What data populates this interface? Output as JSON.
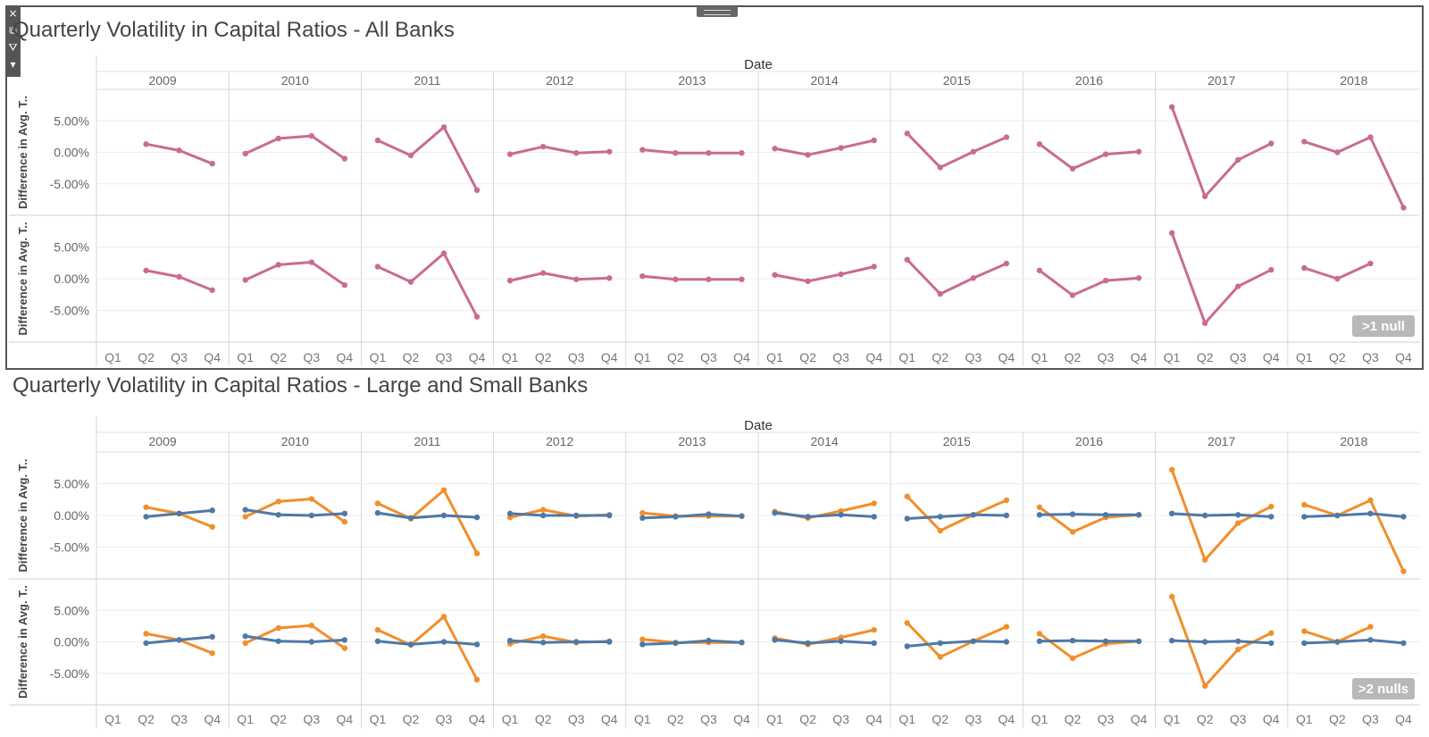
{
  "toolbar": {
    "close_icon": "×",
    "popout_icon": "⧉",
    "filter_icon": "⛛",
    "menu_icon": "▾"
  },
  "colors": {
    "all_banks": "#c96b94",
    "large_banks": "#4e79a7",
    "small_banks": "#f28e2b"
  },
  "chart_data": [
    {
      "type": "line",
      "title": "Quarterly Volatility in Capital Ratios - All Banks",
      "column_header": "Date",
      "years": [
        "2009",
        "2010",
        "2011",
        "2012",
        "2013",
        "2014",
        "2015",
        "2016",
        "2017",
        "2018"
      ],
      "quarters": [
        "Q1",
        "Q2",
        "Q3",
        "Q4"
      ],
      "ylabel": "Difference in Avg. T..",
      "yticks": [
        "5.00%",
        "0.00%",
        "-5.00%"
      ],
      "ytick_values": [
        5,
        0,
        -5
      ],
      "ylim": [
        -10,
        10
      ],
      "null_badge": ">1 null",
      "rows": [
        {
          "series": [
            {
              "color_key": "all_banks",
              "values": [
                [
                  null,
                  1.3,
                  0.3,
                  -1.8
                ],
                [
                  -0.2,
                  2.2,
                  2.6,
                  -1.0
                ],
                [
                  1.9,
                  -0.5,
                  4.0,
                  -6.0
                ],
                [
                  -0.3,
                  0.9,
                  -0.1,
                  0.1
                ],
                [
                  0.4,
                  -0.1,
                  -0.1,
                  -0.1
                ],
                [
                  0.6,
                  -0.4,
                  0.7,
                  1.9
                ],
                [
                  3.0,
                  -2.4,
                  0.1,
                  2.4
                ],
                [
                  1.3,
                  -2.6,
                  -0.3,
                  0.1
                ],
                [
                  7.2,
                  -7.0,
                  -1.2,
                  1.4
                ],
                [
                  1.7,
                  0.0,
                  2.4,
                  -8.8
                ]
              ]
            }
          ]
        },
        {
          "series": [
            {
              "color_key": "all_banks",
              "values": [
                [
                  null,
                  1.3,
                  0.3,
                  -1.8
                ],
                [
                  -0.2,
                  2.2,
                  2.6,
                  -1.0
                ],
                [
                  1.9,
                  -0.5,
                  4.0,
                  -6.0
                ],
                [
                  -0.3,
                  0.9,
                  -0.1,
                  0.1
                ],
                [
                  0.4,
                  -0.1,
                  -0.1,
                  -0.1
                ],
                [
                  0.6,
                  -0.4,
                  0.7,
                  1.9
                ],
                [
                  3.0,
                  -2.4,
                  0.1,
                  2.4
                ],
                [
                  1.3,
                  -2.6,
                  -0.3,
                  0.1
                ],
                [
                  7.2,
                  -7.0,
                  -1.2,
                  1.4
                ],
                [
                  1.7,
                  0.0,
                  2.4,
                  null
                ]
              ]
            }
          ]
        }
      ]
    },
    {
      "type": "line",
      "title": "Quarterly Volatility in Capital Ratios - Large and Small Banks",
      "column_header": "Date",
      "years": [
        "2009",
        "2010",
        "2011",
        "2012",
        "2013",
        "2014",
        "2015",
        "2016",
        "2017",
        "2018"
      ],
      "quarters": [
        "Q1",
        "Q2",
        "Q3",
        "Q4"
      ],
      "ylabel": "Difference in Avg. T..",
      "yticks": [
        "5.00%",
        "0.00%",
        "-5.00%"
      ],
      "ytick_values": [
        5,
        0,
        -5
      ],
      "ylim": [
        -10,
        10
      ],
      "null_badge": ">2 nulls",
      "rows": [
        {
          "series": [
            {
              "color_key": "small_banks",
              "values": [
                [
                  null,
                  1.3,
                  0.3,
                  -1.8
                ],
                [
                  -0.2,
                  2.2,
                  2.6,
                  -1.0
                ],
                [
                  1.9,
                  -0.5,
                  4.0,
                  -6.0
                ],
                [
                  -0.3,
                  0.9,
                  -0.1,
                  0.1
                ],
                [
                  0.4,
                  -0.1,
                  -0.1,
                  -0.1
                ],
                [
                  0.6,
                  -0.4,
                  0.7,
                  1.9
                ],
                [
                  3.0,
                  -2.4,
                  0.1,
                  2.4
                ],
                [
                  1.3,
                  -2.6,
                  -0.3,
                  0.1
                ],
                [
                  7.2,
                  -7.0,
                  -1.2,
                  1.4
                ],
                [
                  1.7,
                  0.0,
                  2.4,
                  -8.8
                ]
              ]
            },
            {
              "color_key": "large_banks",
              "values": [
                [
                  null,
                  -0.2,
                  0.3,
                  0.8
                ],
                [
                  0.9,
                  0.1,
                  0.0,
                  0.3
                ],
                [
                  0.4,
                  -0.4,
                  0.0,
                  -0.3
                ],
                [
                  0.3,
                  0.0,
                  0.0,
                  0.0
                ],
                [
                  -0.4,
                  -0.2,
                  0.2,
                  -0.1
                ],
                [
                  0.4,
                  -0.2,
                  0.1,
                  -0.2
                ],
                [
                  -0.5,
                  -0.2,
                  0.1,
                  0.0
                ],
                [
                  0.1,
                  0.2,
                  0.1,
                  0.1
                ],
                [
                  0.3,
                  0.0,
                  0.1,
                  -0.2
                ],
                [
                  -0.2,
                  0.0,
                  0.3,
                  -0.2
                ]
              ]
            }
          ]
        },
        {
          "series": [
            {
              "color_key": "small_banks",
              "values": [
                [
                  null,
                  1.3,
                  0.3,
                  -1.8
                ],
                [
                  -0.2,
                  2.2,
                  2.6,
                  -1.0
                ],
                [
                  1.9,
                  -0.5,
                  4.0,
                  -6.0
                ],
                [
                  -0.3,
                  0.9,
                  -0.1,
                  0.1
                ],
                [
                  0.4,
                  -0.1,
                  -0.1,
                  -0.1
                ],
                [
                  0.6,
                  -0.4,
                  0.7,
                  1.9
                ],
                [
                  3.0,
                  -2.4,
                  0.1,
                  2.4
                ],
                [
                  1.3,
                  -2.6,
                  -0.3,
                  0.1
                ],
                [
                  7.2,
                  -7.0,
                  -1.2,
                  1.4
                ],
                [
                  1.7,
                  0.0,
                  2.4,
                  null
                ]
              ]
            },
            {
              "color_key": "large_banks",
              "values": [
                [
                  null,
                  -0.2,
                  0.3,
                  0.8
                ],
                [
                  0.9,
                  0.1,
                  0.0,
                  0.3
                ],
                [
                  0.1,
                  -0.4,
                  0.0,
                  -0.4
                ],
                [
                  0.2,
                  -0.1,
                  0.0,
                  0.0
                ],
                [
                  -0.4,
                  -0.2,
                  0.2,
                  -0.1
                ],
                [
                  0.3,
                  -0.2,
                  0.1,
                  -0.2
                ],
                [
                  -0.7,
                  -0.2,
                  0.1,
                  0.0
                ],
                [
                  0.1,
                  0.2,
                  0.1,
                  0.1
                ],
                [
                  0.2,
                  0.0,
                  0.1,
                  -0.2
                ],
                [
                  -0.2,
                  0.0,
                  0.3,
                  -0.2
                ]
              ]
            }
          ]
        }
      ]
    }
  ]
}
